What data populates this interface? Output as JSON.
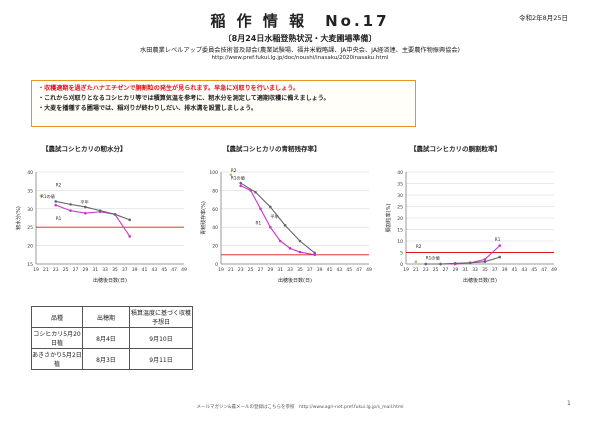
{
  "header": {
    "title": "稲 作 情 報　No.17",
    "date": "令和2年8月25日",
    "subtitle": "〔8月24日水稲登熟状況・大麦圃場準備〕",
    "org": "水田農業レベルアップ委員会技術普及部会(農業試験場、福井米戦略課、JA中央会、JA経済連、主要農作物振興協会)",
    "url": "http://www.pref.fukui.lg.jp/doc/noushi/inasaku/2020inasaku.html"
  },
  "notice": [
    {
      "text": "・収穫適期を過ぎたハナエチゼンで胴割粒の発生が見られます。早急に刈取りを行いましょう。",
      "color": "#e0141e"
    },
    {
      "text": "・これから刈取りとなるコシヒカリ等では積算気温を参考に、籾水分を測定して適期収穫に備えましょう。",
      "color": "#222222"
    },
    {
      "text": "・大麦を播種する圃場では、稲刈りが終わりしだい、排水溝を設置しましょう。",
      "color": "#222222"
    }
  ],
  "chart_data": [
    {
      "type": "line",
      "title": "【農試コシヒカリの籾水分】",
      "xlabel": "出穂後日数(日)",
      "ylabel": "籾水分(%)",
      "ylim": [
        15,
        40
      ],
      "yticks": [
        15,
        20,
        25,
        30,
        35,
        40
      ],
      "xlim": [
        19,
        49
      ],
      "xticks": [
        19,
        21,
        23,
        25,
        27,
        29,
        31,
        33,
        35,
        37,
        39,
        41,
        43,
        45,
        47,
        49
      ],
      "threshold": 25,
      "series": [
        {
          "name": "R2",
          "color": "#cc33cc",
          "x": [
            23,
            26,
            29,
            32,
            35,
            38
          ],
          "y": [
            31,
            29.5,
            28.8,
            29.2,
            28.5,
            22.5
          ]
        },
        {
          "name": "平年",
          "color": "#666666",
          "x": [
            23,
            26,
            29,
            32,
            35,
            38
          ],
          "y": [
            32,
            31.2,
            30.5,
            29.5,
            28.5,
            27
          ]
        },
        {
          "name": "R1",
          "color": "#99cc66",
          "x": [
            20
          ],
          "y": [
            33.5
          ]
        }
      ],
      "labels": [
        {
          "text": "R2",
          "x": 23,
          "y": 36
        },
        {
          "text": "R1",
          "x": 23,
          "y": 27
        },
        {
          "text": "平年",
          "x": 28,
          "y": 31.5
        },
        {
          "text": "R1の値",
          "x": 20,
          "y": 33
        }
      ]
    },
    {
      "type": "line",
      "title": "【農試コシヒカリの青籾残存率】",
      "xlabel": "出穂後日数(日)",
      "ylabel": "青籾残存率(%)",
      "ylim": [
        0,
        100
      ],
      "yticks": [
        0,
        20,
        40,
        60,
        80,
        100
      ],
      "xlim": [
        19,
        49
      ],
      "xticks": [
        19,
        21,
        23,
        25,
        27,
        29,
        31,
        33,
        35,
        37,
        39,
        41,
        43,
        45,
        47,
        49
      ],
      "threshold": 10,
      "series": [
        {
          "name": "R2",
          "color": "#cc33cc",
          "x": [
            23,
            25,
            27,
            29,
            31,
            33,
            35,
            38
          ],
          "y": [
            85,
            80,
            60,
            40,
            25,
            17,
            13,
            10
          ]
        },
        {
          "name": "平年",
          "color": "#666666",
          "x": [
            23,
            26,
            29,
            32,
            35,
            38
          ],
          "y": [
            88,
            78,
            62,
            42,
            25,
            12
          ]
        },
        {
          "name": "R1",
          "color": "#99cc66",
          "x": [
            21
          ],
          "y": [
            97
          ]
        }
      ],
      "labels": [
        {
          "text": "R2",
          "x": 21,
          "y": 100
        },
        {
          "text": "平年",
          "x": 29,
          "y": 50
        },
        {
          "text": "R1",
          "x": 26,
          "y": 43
        },
        {
          "text": "R1の値",
          "x": 21,
          "y": 92
        }
      ]
    },
    {
      "type": "line",
      "title": "【農試コシヒカリの胴割粒率】",
      "xlabel": "出穂後日数(日)",
      "ylabel": "胴割粒率(%)",
      "ylim": [
        0,
        40
      ],
      "yticks": [
        0,
        5,
        10,
        15,
        20,
        25,
        30,
        35,
        40
      ],
      "xlim": [
        19,
        49
      ],
      "xticks": [
        19,
        21,
        23,
        25,
        27,
        29,
        31,
        33,
        35,
        37,
        39,
        41,
        43,
        45,
        47,
        49
      ],
      "threshold": 5,
      "series": [
        {
          "name": "R2",
          "color": "#cc33cc",
          "x": [
            23,
            26,
            29,
            32,
            35,
            38
          ],
          "y": [
            0,
            0,
            0,
            0.5,
            2,
            8
          ]
        },
        {
          "name": "平年",
          "color": "#666666",
          "x": [
            23,
            26,
            29,
            32,
            35,
            38
          ],
          "y": [
            0,
            0,
            0.3,
            0.5,
            1,
            3
          ]
        },
        {
          "name": "R1",
          "color": "#99cc66",
          "x": [
            21
          ],
          "y": [
            1
          ]
        }
      ],
      "labels": [
        {
          "text": "R2",
          "x": 21,
          "y": 7
        },
        {
          "text": "R1",
          "x": 37,
          "y": 10
        },
        {
          "text": "R1の値",
          "x": 23,
          "y": 2
        }
      ]
    }
  ],
  "table": {
    "headers": [
      "品種",
      "出穂期",
      "積算温度に基づく収穫予想日"
    ],
    "rows": [
      [
        "コシヒカリ5月20日植",
        "8月4日",
        "9月10日"
      ],
      [
        "あきさかり5月2日植",
        "8月3日",
        "9月11日"
      ]
    ]
  },
  "footer": "メールマガジン&農メールの登録はこちらを参照　http://www.agri-net.pref.fukui.lg.jp/s_mail.html",
  "page_number": "1"
}
